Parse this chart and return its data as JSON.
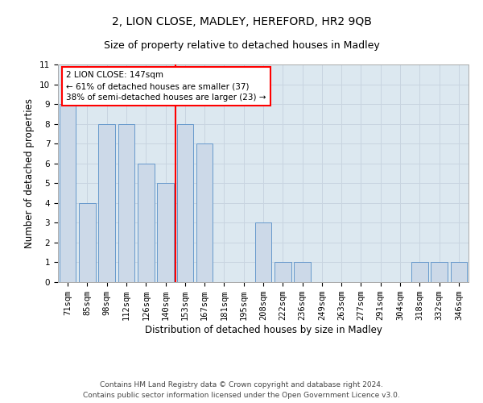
{
  "title1": "2, LION CLOSE, MADLEY, HEREFORD, HR2 9QB",
  "title2": "Size of property relative to detached houses in Madley",
  "xlabel": "Distribution of detached houses by size in Madley",
  "ylabel": "Number of detached properties",
  "categories": [
    "71sqm",
    "85sqm",
    "98sqm",
    "112sqm",
    "126sqm",
    "140sqm",
    "153sqm",
    "167sqm",
    "181sqm",
    "195sqm",
    "208sqm",
    "222sqm",
    "236sqm",
    "249sqm",
    "263sqm",
    "277sqm",
    "291sqm",
    "304sqm",
    "318sqm",
    "332sqm",
    "346sqm"
  ],
  "values": [
    9,
    4,
    8,
    8,
    6,
    5,
    8,
    7,
    0,
    0,
    3,
    1,
    1,
    0,
    0,
    0,
    0,
    0,
    1,
    1,
    1
  ],
  "bar_color": "#ccd9e8",
  "bar_edge_color": "#6699cc",
  "reference_line_x": 5.5,
  "annotation_line1": "2 LION CLOSE: 147sqm",
  "annotation_line2": "← 61% of detached houses are smaller (37)",
  "annotation_line3": "38% of semi-detached houses are larger (23) →",
  "annotation_box_color": "white",
  "annotation_box_edge_color": "red",
  "ref_line_color": "red",
  "ylim": [
    0,
    11
  ],
  "yticks": [
    0,
    1,
    2,
    3,
    4,
    5,
    6,
    7,
    8,
    9,
    10,
    11
  ],
  "grid_color": "#c8d4e0",
  "bg_color": "#dce8f0",
  "footer1": "Contains HM Land Registry data © Crown copyright and database right 2024.",
  "footer2": "Contains public sector information licensed under the Open Government Licence v3.0.",
  "title1_fontsize": 10,
  "title2_fontsize": 9,
  "tick_fontsize": 7.5,
  "label_fontsize": 8.5,
  "footer_fontsize": 6.5
}
